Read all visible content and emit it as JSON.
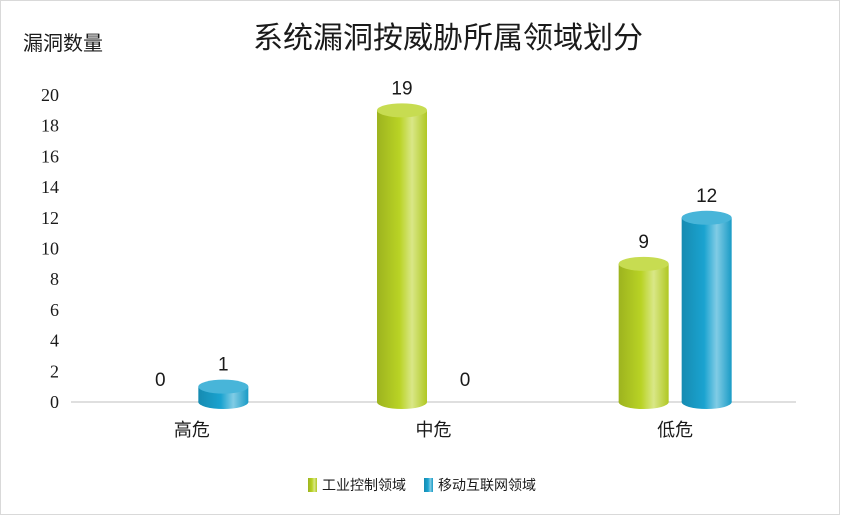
{
  "chart_data": {
    "type": "bar",
    "title": "系统漏洞按威胁所属领域划分",
    "ylabel": "漏洞数量",
    "xlabel": "",
    "categories": [
      "高危",
      "中危",
      "低危"
    ],
    "series": [
      {
        "name": "工业控制领域",
        "values": [
          0,
          19,
          9
        ],
        "color": "#b9d325"
      },
      {
        "name": "移动互联网领域",
        "values": [
          1,
          0,
          12
        ],
        "color": "#1aa3d0"
      }
    ],
    "ylim": [
      0,
      20
    ],
    "yticks": [
      0,
      2,
      4,
      6,
      8,
      10,
      12,
      14,
      16,
      18,
      20
    ],
    "grid": false,
    "legend_position": "bottom",
    "bar_style": "3d-cylinder"
  }
}
